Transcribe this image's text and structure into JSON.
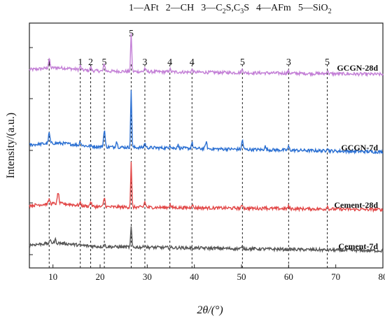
{
  "legend": {
    "items": [
      {
        "num": "1",
        "name": "AFt",
        "sub": []
      },
      {
        "num": "2",
        "name": "CH",
        "sub": []
      },
      {
        "num": "3",
        "name": "C2S,C3S",
        "sub": [
          [
            "C",
            "2"
          ],
          [
            "S,C",
            "3"
          ],
          [
            "S",
            ""
          ]
        ]
      },
      {
        "num": "4",
        "name": "AFm",
        "sub": []
      },
      {
        "num": "5",
        "name": "SiO2",
        "sub": [
          [
            "SiO",
            "2"
          ]
        ]
      }
    ]
  },
  "chart_data": {
    "type": "line",
    "xlabel": "2θ/(°)",
    "ylabel": "Intensity/(a.u.)",
    "xlim": [
      5,
      80
    ],
    "xticks": [
      10,
      20,
      30,
      40,
      50,
      60,
      70,
      80
    ],
    "grid": false,
    "reference_lines": [
      {
        "x": 9.2,
        "label": "1"
      },
      {
        "x": 15.8,
        "label": "1"
      },
      {
        "x": 18.0,
        "label": "2"
      },
      {
        "x": 20.9,
        "label": "5"
      },
      {
        "x": 26.6,
        "label": "5"
      },
      {
        "x": 29.5,
        "label": "3"
      },
      {
        "x": 34.8,
        "label": "4"
      },
      {
        "x": 39.5,
        "label": "4"
      },
      {
        "x": 50.2,
        "label": "5"
      },
      {
        "x": 60.0,
        "label": "3"
      },
      {
        "x": 68.2,
        "label": "5"
      }
    ],
    "series": [
      {
        "name": "GCGN-28d",
        "color": "#c37fd6",
        "baseline_start": 0.3,
        "baseline_end": -0.4,
        "peaks": [
          [
            9.2,
            1.6
          ],
          [
            15.8,
            0.6
          ],
          [
            18.0,
            0.5
          ],
          [
            20.9,
            1.2
          ],
          [
            26.6,
            6.8
          ],
          [
            29.5,
            0.6
          ],
          [
            34.8,
            0.5
          ],
          [
            39.5,
            0.4
          ],
          [
            50.2,
            0.6
          ],
          [
            60.0,
            0.4
          ],
          [
            68.2,
            0.5
          ]
        ]
      },
      {
        "name": "GCGN-7d",
        "color": "#2a6fd2",
        "baseline_start": 0.6,
        "baseline_end": -0.5,
        "peaks": [
          [
            9.2,
            1.8
          ],
          [
            15.8,
            0.7
          ],
          [
            20.9,
            3.0
          ],
          [
            23.5,
            1.0
          ],
          [
            26.6,
            10.0
          ],
          [
            29.5,
            0.8
          ],
          [
            34.8,
            0.6
          ],
          [
            36.5,
            0.6
          ],
          [
            39.5,
            1.0
          ],
          [
            42.5,
            1.2
          ],
          [
            50.2,
            1.6
          ],
          [
            55.0,
            0.6
          ],
          [
            60.0,
            0.6
          ],
          [
            68.2,
            0.6
          ]
        ]
      },
      {
        "name": "Cement-28d",
        "color": "#e24848",
        "baseline_start": 0.4,
        "baseline_end": -0.2,
        "peaks": [
          [
            9.2,
            0.8
          ],
          [
            11.1,
            2.0
          ],
          [
            15.8,
            0.5
          ],
          [
            18.0,
            0.8
          ],
          [
            20.9,
            1.6
          ],
          [
            26.6,
            7.8
          ],
          [
            29.5,
            1.0
          ],
          [
            34.8,
            0.5
          ],
          [
            39.5,
            0.6
          ],
          [
            50.2,
            0.6
          ],
          [
            55.0,
            0.4
          ],
          [
            60.0,
            0.4
          ],
          [
            68.2,
            0.5
          ]
        ]
      },
      {
        "name": "Cement-7d",
        "color": "#555555",
        "baseline_start": 0.6,
        "baseline_end": -0.3,
        "peaks": [
          [
            9.5,
            0.6
          ],
          [
            10.5,
            0.6
          ],
          [
            20.9,
            0.4
          ],
          [
            26.6,
            3.6
          ],
          [
            29.5,
            0.4
          ],
          [
            50.2,
            0.3
          ]
        ]
      }
    ]
  }
}
